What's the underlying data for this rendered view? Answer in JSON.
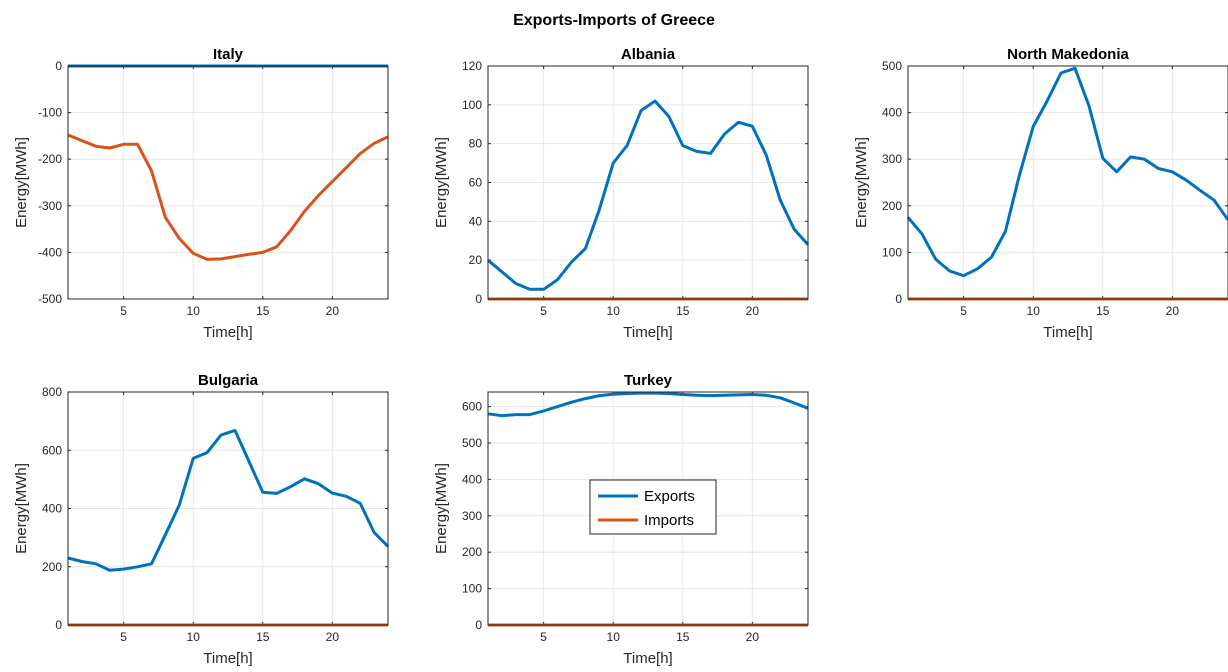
{
  "figure_title": "Exports-Imports of Greece",
  "legend": {
    "exports": "Exports",
    "imports": "Imports"
  },
  "colors": {
    "exports": "#0072BD",
    "imports": "#D95319",
    "grid": "#e6e6e6",
    "axis": "#262626"
  },
  "chart_data": [
    {
      "type": "line",
      "title": "Italy",
      "xlabel": "Time[h]",
      "ylabel": "Energy[MWh]",
      "xlim": [
        1,
        24
      ],
      "ylim": [
        -500,
        0
      ],
      "xticks": [
        5,
        10,
        15,
        20
      ],
      "yticks": [
        -500,
        -400,
        -300,
        -200,
        -100,
        0
      ],
      "grid": true,
      "x": [
        1,
        2,
        3,
        4,
        5,
        6,
        7,
        8,
        9,
        10,
        11,
        12,
        13,
        14,
        15,
        16,
        17,
        18,
        19,
        20,
        21,
        22,
        23,
        24
      ],
      "series": [
        {
          "name": "Exports",
          "values": [
            0,
            0,
            0,
            0,
            0,
            0,
            0,
            0,
            0,
            0,
            0,
            0,
            0,
            0,
            0,
            0,
            0,
            0,
            0,
            0,
            0,
            0,
            0,
            0
          ]
        },
        {
          "name": "Imports",
          "values": [
            -148,
            -160,
            -172,
            -176,
            -168,
            -168,
            -225,
            -325,
            -370,
            -402,
            -415,
            -414,
            -409,
            -404,
            -400,
            -388,
            -353,
            -312,
            -278,
            -248,
            -218,
            -188,
            -166,
            -152
          ]
        }
      ]
    },
    {
      "type": "line",
      "title": "Albania",
      "xlabel": "Time[h]",
      "ylabel": "Energy[MWh]",
      "xlim": [
        1,
        24
      ],
      "ylim": [
        0,
        120
      ],
      "xticks": [
        5,
        10,
        15,
        20
      ],
      "yticks": [
        0,
        20,
        40,
        60,
        80,
        100,
        120
      ],
      "grid": true,
      "x": [
        1,
        2,
        3,
        4,
        5,
        6,
        7,
        8,
        9,
        10,
        11,
        12,
        13,
        14,
        15,
        16,
        17,
        18,
        19,
        20,
        21,
        22,
        23,
        24
      ],
      "series": [
        {
          "name": "Exports",
          "values": [
            20,
            14,
            8,
            5,
            5,
            10,
            19,
            26,
            46,
            70,
            79,
            97,
            102,
            94,
            79,
            76,
            75,
            85,
            91,
            89,
            74,
            51,
            36,
            28
          ]
        },
        {
          "name": "Imports",
          "values": [
            0,
            0,
            0,
            0,
            0,
            0,
            0,
            0,
            0,
            0,
            0,
            0,
            0,
            0,
            0,
            0,
            0,
            0,
            0,
            0,
            0,
            0,
            0,
            0
          ]
        }
      ]
    },
    {
      "type": "line",
      "title": "North Makedonia",
      "xlabel": "Time[h]",
      "ylabel": "Energy[MWh]",
      "xlim": [
        1,
        24
      ],
      "ylim": [
        0,
        500
      ],
      "xticks": [
        5,
        10,
        15,
        20
      ],
      "yticks": [
        0,
        100,
        200,
        300,
        400,
        500
      ],
      "grid": true,
      "x": [
        1,
        2,
        3,
        4,
        5,
        6,
        7,
        8,
        9,
        10,
        11,
        12,
        13,
        14,
        15,
        16,
        17,
        18,
        19,
        20,
        21,
        22,
        23,
        24
      ],
      "series": [
        {
          "name": "Exports",
          "values": [
            175,
            140,
            85,
            60,
            50,
            65,
            90,
            145,
            265,
            370,
            425,
            485,
            495,
            415,
            302,
            273,
            305,
            300,
            280,
            273,
            255,
            233,
            212,
            170
          ]
        },
        {
          "name": "Imports",
          "values": [
            0,
            0,
            0,
            0,
            0,
            0,
            0,
            0,
            0,
            0,
            0,
            0,
            0,
            0,
            0,
            0,
            0,
            0,
            0,
            0,
            0,
            0,
            0,
            0
          ]
        }
      ]
    },
    {
      "type": "line",
      "title": "Bulgaria",
      "xlabel": "Time[h]",
      "ylabel": "Energy[MWh]",
      "xlim": [
        1,
        24
      ],
      "ylim": [
        0,
        800
      ],
      "xticks": [
        5,
        10,
        15,
        20
      ],
      "yticks": [
        0,
        200,
        400,
        600,
        800
      ],
      "grid": true,
      "x": [
        1,
        2,
        3,
        4,
        5,
        6,
        7,
        8,
        9,
        10,
        11,
        12,
        13,
        14,
        15,
        16,
        17,
        18,
        19,
        20,
        21,
        22,
        23,
        24
      ],
      "series": [
        {
          "name": "Exports",
          "values": [
            230,
            218,
            210,
            188,
            192,
            200,
            210,
            310,
            412,
            572,
            592,
            652,
            668,
            562,
            456,
            452,
            475,
            502,
            485,
            453,
            442,
            418,
            318,
            270
          ]
        },
        {
          "name": "Imports",
          "values": [
            0,
            0,
            0,
            0,
            0,
            0,
            0,
            0,
            0,
            0,
            0,
            0,
            0,
            0,
            0,
            0,
            0,
            0,
            0,
            0,
            0,
            0,
            0,
            0
          ]
        }
      ]
    },
    {
      "type": "line",
      "title": "Turkey",
      "xlabel": "Time[h]",
      "ylabel": "Energy[MWh]",
      "xlim": [
        1,
        24
      ],
      "ylim": [
        0,
        640
      ],
      "xticks": [
        5,
        10,
        15,
        20
      ],
      "yticks": [
        0,
        100,
        200,
        300,
        400,
        500,
        600
      ],
      "grid": true,
      "legend_position": "center",
      "x": [
        1,
        2,
        3,
        4,
        5,
        6,
        7,
        8,
        9,
        10,
        11,
        12,
        13,
        14,
        15,
        16,
        17,
        18,
        19,
        20,
        21,
        22,
        23,
        24
      ],
      "series": [
        {
          "name": "Exports",
          "values": [
            580,
            575,
            578,
            578,
            588,
            600,
            612,
            622,
            630,
            634,
            636,
            637,
            637,
            636,
            633,
            631,
            630,
            631,
            632,
            633,
            631,
            624,
            610,
            595
          ]
        },
        {
          "name": "Imports",
          "values": [
            0,
            0,
            0,
            0,
            0,
            0,
            0,
            0,
            0,
            0,
            0,
            0,
            0,
            0,
            0,
            0,
            0,
            0,
            0,
            0,
            0,
            0,
            0,
            0
          ]
        }
      ]
    }
  ]
}
